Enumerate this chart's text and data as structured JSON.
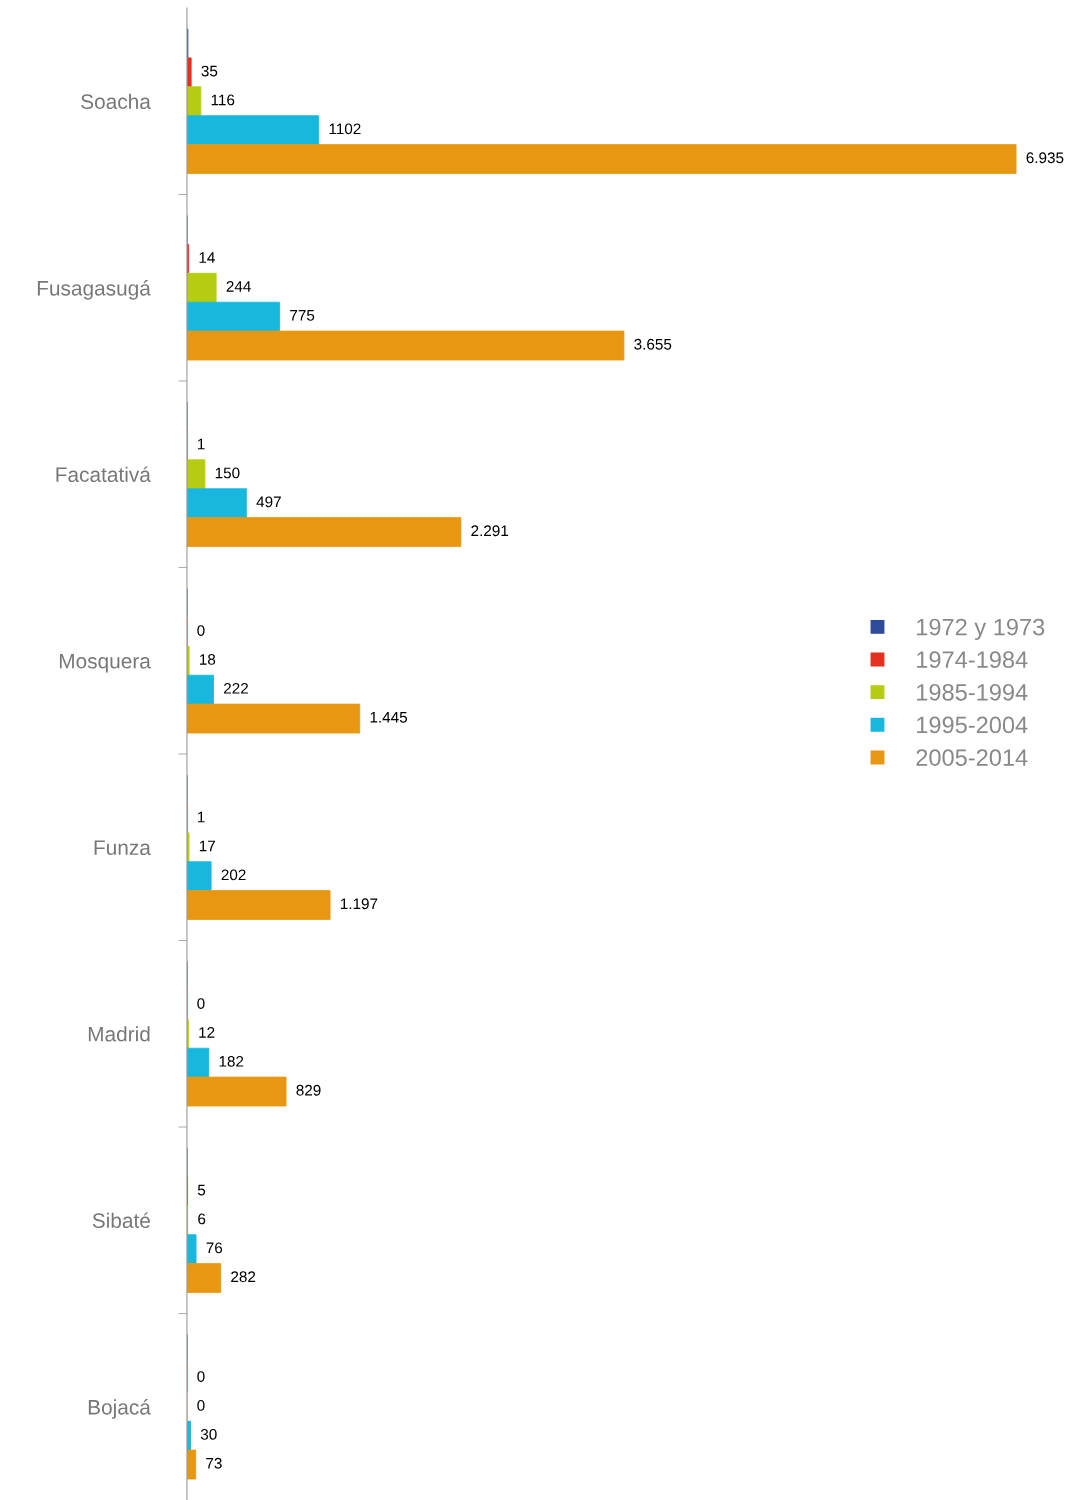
{
  "chart_data": {
    "type": "bar",
    "orientation": "horizontal",
    "categories": [
      "Soacha",
      "Fusagasugá",
      "Facatativá",
      "Mosquera",
      "Funza",
      "Madrid",
      "Sibaté",
      "Bojacá"
    ],
    "series": [
      {
        "name": "1972 y 1973",
        "color": "#2e4a9a",
        "values": [
          8,
          null,
          null,
          null,
          null,
          null,
          null,
          null
        ],
        "value_labels": [
          null,
          null,
          null,
          null,
          null,
          null,
          null,
          null
        ]
      },
      {
        "name": "1974-1984",
        "color": "#e3301f",
        "values": [
          35,
          14,
          1,
          0,
          1,
          0,
          5,
          0
        ],
        "value_labels": [
          "35",
          "14",
          "1",
          "0",
          "1",
          "0",
          "5",
          "0"
        ]
      },
      {
        "name": "1985-1994",
        "color": "#b5cc10",
        "values": [
          116,
          244,
          150,
          18,
          17,
          12,
          6,
          0
        ],
        "value_labels": [
          "116",
          "244",
          "150",
          "18",
          "17",
          "12",
          "6",
          "0"
        ]
      },
      {
        "name": "1995-2004",
        "color": "#17b7de",
        "values": [
          1102,
          775,
          497,
          222,
          202,
          182,
          76,
          30
        ],
        "value_labels": [
          "1102",
          "775",
          "497",
          "222",
          "202",
          "182",
          "76",
          "30"
        ]
      },
      {
        "name": "2005-2014",
        "color": "#e89713",
        "values": [
          6935,
          3655,
          2291,
          1445,
          1197,
          829,
          282,
          73
        ],
        "value_labels": [
          "6.935",
          "3.655",
          "2.291",
          "1.445",
          "1.197",
          "829",
          "282",
          "73"
        ]
      }
    ],
    "legend": "right",
    "grid": false
  }
}
